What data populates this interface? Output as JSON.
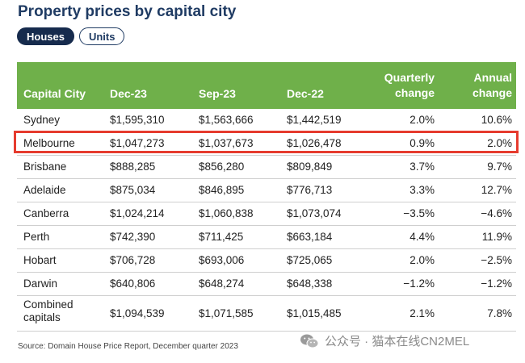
{
  "title": "Property prices by capital city",
  "toggles": {
    "houses": "Houses",
    "units": "Units"
  },
  "table": {
    "columns": [
      {
        "line1": "Capital City",
        "line2": ""
      },
      {
        "line1": "Dec-23",
        "line2": ""
      },
      {
        "line1": "Sep-23",
        "line2": ""
      },
      {
        "line1": "Dec-22",
        "line2": ""
      },
      {
        "line1": "Quarterly",
        "line2": "change"
      },
      {
        "line1": "Annual",
        "line2": "change"
      }
    ],
    "rows": [
      {
        "city": "Sydney",
        "dec23": "$1,595,310",
        "sep23": "$1,563,666",
        "dec22": "$1,442,519",
        "quarterly": "2.0%",
        "annual": "10.6%"
      },
      {
        "city": "Melbourne",
        "dec23": "$1,047,273",
        "sep23": "$1,037,673",
        "dec22": "$1,026,478",
        "quarterly": "0.9%",
        "annual": "2.0%"
      },
      {
        "city": "Brisbane",
        "dec23": "$888,285",
        "sep23": "$856,280",
        "dec22": "$809,849",
        "quarterly": "3.7%",
        "annual": "9.7%"
      },
      {
        "city": "Adelaide",
        "dec23": "$875,034",
        "sep23": "$846,895",
        "dec22": "$776,713",
        "quarterly": "3.3%",
        "annual": "12.7%"
      },
      {
        "city": "Canberra",
        "dec23": "$1,024,214",
        "sep23": "$1,060,838",
        "dec22": "$1,073,074",
        "quarterly": "−3.5%",
        "annual": "−4.6%"
      },
      {
        "city": "Perth",
        "dec23": "$742,390",
        "sep23": "$711,425",
        "dec22": "$663,184",
        "quarterly": "4.4%",
        "annual": "11.9%"
      },
      {
        "city": "Hobart",
        "dec23": "$706,728",
        "sep23": "$693,006",
        "dec22": "$725,065",
        "quarterly": "2.0%",
        "annual": "−2.5%"
      },
      {
        "city": "Darwin",
        "dec23": "$640,806",
        "sep23": "$648,274",
        "dec22": "$648,338",
        "quarterly": "−1.2%",
        "annual": "−1.2%"
      },
      {
        "city": "Combined capitals",
        "dec23": "$1,094,539",
        "sep23": "$1,071,585",
        "dec22": "$1,015,485",
        "quarterly": "2.1%",
        "annual": "7.8%"
      }
    ]
  },
  "source": "Source: Domain House Price Report, December quarter 2023",
  "watermark": "公众号 · 猫本在线CN2MEL",
  "colors": {
    "header_green": "#6fb04a",
    "title_navy": "#1f3b63",
    "highlight_red": "#e63b2e"
  }
}
